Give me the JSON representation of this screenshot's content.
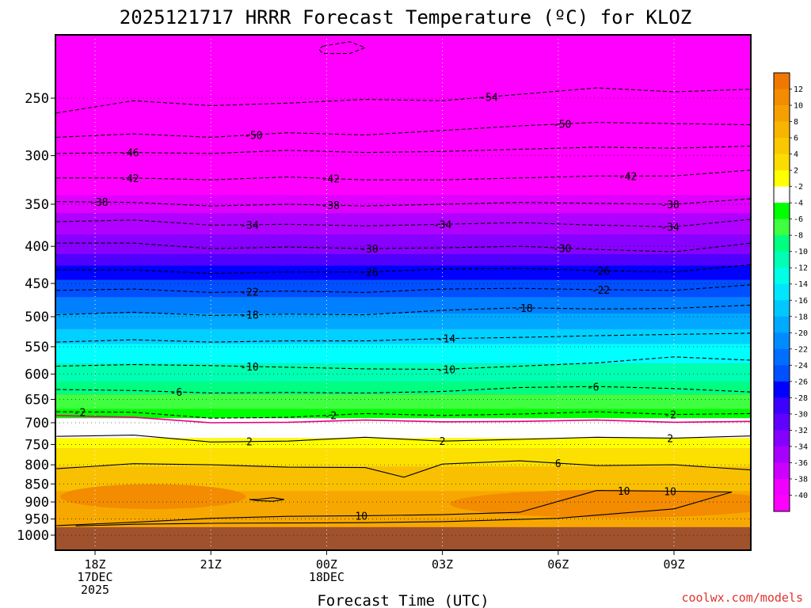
{
  "chart_data": {
    "type": "heatmap",
    "title": "2025121717 HRRR Forecast Temperature (ºC) for KLOZ",
    "xlabel": "Forecast Time (UTC)",
    "ylabel": "",
    "credit": "coolwx.com/models",
    "y_scale": "log-pressure (hPa), inverted",
    "ylim": [
      1050,
      200
    ],
    "y_ticks": [
      250,
      300,
      350,
      400,
      450,
      500,
      550,
      600,
      650,
      700,
      750,
      800,
      850,
      900,
      950,
      1000
    ],
    "x_ticks": [
      {
        "hour": 18,
        "lines": [
          "18Z",
          "17DEC",
          "2025"
        ]
      },
      {
        "hour": 21,
        "lines": [
          "21Z"
        ]
      },
      {
        "hour": 24,
        "lines": [
          "00Z",
          "18DEC"
        ]
      },
      {
        "hour": 27,
        "lines": [
          "03Z"
        ]
      },
      {
        "hour": 30,
        "lines": [
          "06Z"
        ]
      },
      {
        "hour": 33,
        "lines": [
          "09Z"
        ]
      }
    ],
    "xlim": [
      17,
      35
    ],
    "grid": true,
    "colorbar": {
      "placement": "right",
      "labels": [
        "12",
        "10",
        "8",
        "6",
        "4",
        "2",
        "-2",
        "-4",
        "-6",
        "-8",
        "-10",
        "-12",
        "-14",
        "-16",
        "-18",
        "-20",
        "-22",
        "-24",
        "-26",
        "-28",
        "-30",
        "-32",
        "-34",
        "-36",
        "-38",
        "-40"
      ],
      "colors": [
        "#f07800",
        "#f38c00",
        "#f6a000",
        "#f8b400",
        "#fac800",
        "#fcdc00",
        "#ffff00",
        "#ffffff",
        "#00ff00",
        "#40ff40",
        "#00ff80",
        "#00ffb4",
        "#00ffe6",
        "#00e6ff",
        "#00c8ff",
        "#00aaff",
        "#008cff",
        "#006eff",
        "#0050ff",
        "#0000ff",
        "#3c00ff",
        "#6000ff",
        "#8400ff",
        "#a800ff",
        "#cc00ff",
        "#f000ff",
        "#ff00ff"
      ]
    },
    "ground_color": "#a0522d",
    "freezing_line_color": "#e6007e",
    "bands": [
      {
        "top": 250,
        "bottom": 340,
        "color": "#ff00ff"
      },
      {
        "top": 340,
        "bottom": 360,
        "color": "#e000ff"
      },
      {
        "top": 360,
        "bottom": 385,
        "color": "#b000ff"
      },
      {
        "top": 385,
        "bottom": 410,
        "color": "#8800ff"
      },
      {
        "top": 410,
        "bottom": 425,
        "color": "#5000ff"
      },
      {
        "top": 425,
        "bottom": 445,
        "color": "#0000ff"
      },
      {
        "top": 445,
        "bottom": 470,
        "color": "#0050ff"
      },
      {
        "top": 470,
        "bottom": 495,
        "color": "#0080ff"
      },
      {
        "top": 495,
        "bottom": 520,
        "color": "#00a8ff"
      },
      {
        "top": 520,
        "bottom": 545,
        "color": "#00d0ff"
      },
      {
        "top": 545,
        "bottom": 580,
        "color": "#00ffff"
      },
      {
        "top": 580,
        "bottom": 615,
        "color": "#00ffb0"
      },
      {
        "top": 615,
        "bottom": 640,
        "color": "#00ff80"
      },
      {
        "top": 640,
        "bottom": 670,
        "color": "#40ff40"
      },
      {
        "top": 670,
        "bottom": 690,
        "color": "#00ff00"
      },
      {
        "top": 690,
        "bottom": 735,
        "color": "#ffffff"
      },
      {
        "top": 735,
        "bottom": 760,
        "color": "#ffff00"
      },
      {
        "top": 760,
        "bottom": 805,
        "color": "#fce000"
      },
      {
        "top": 805,
        "bottom": 870,
        "color": "#f8c000"
      },
      {
        "top": 870,
        "bottom": 975,
        "color": "#f7a800"
      }
    ],
    "warm_blobs": [
      {
        "x": 19.5,
        "p": 885,
        "rx": 2.4,
        "rp": 35
      },
      {
        "x": 31.5,
        "p": 905,
        "rx": 4.3,
        "rp": 40
      }
    ],
    "ground_top": 975,
    "contours": [
      {
        "label": "-54",
        "style": "dashed",
        "x": [
          17,
          19,
          21,
          23,
          25,
          27,
          29,
          31,
          33,
          35
        ],
        "p": [
          262,
          252,
          256,
          254,
          251,
          252,
          247,
          242,
          245,
          243
        ],
        "labels_at": [
          28.2
        ]
      },
      {
        "label": "-50",
        "style": "dashed",
        "x": [
          17,
          19,
          21,
          23,
          25,
          27,
          29,
          31,
          33,
          35
        ],
        "p": [
          283,
          280,
          283,
          279,
          281,
          277,
          273,
          270,
          271,
          272
        ],
        "labels_at": [
          22.1,
          30.1
        ]
      },
      {
        "label": "-46",
        "style": "dashed",
        "x": [
          17,
          19,
          21,
          23,
          25,
          27,
          29,
          31,
          33,
          35
        ],
        "p": [
          298,
          297,
          298,
          295,
          297,
          296,
          294,
          292,
          293,
          291
        ],
        "labels_at": [
          18.9
        ]
      },
      {
        "label": "-42",
        "style": "dashed",
        "x": [
          17,
          19,
          21,
          23,
          25,
          27,
          29,
          31,
          33,
          35
        ],
        "p": [
          322,
          322,
          324,
          321,
          324,
          324,
          322,
          320,
          320,
          314
        ],
        "labels_at": [
          18.9,
          24.1,
          31.8
        ]
      },
      {
        "label": "-38",
        "style": "dashed",
        "x": [
          17,
          19,
          21,
          23,
          25,
          27,
          29,
          31,
          33,
          35
        ],
        "p": [
          347,
          348,
          352,
          350,
          352,
          350,
          348,
          349,
          350,
          344
        ],
        "labels_at": [
          18.1,
          24.1,
          32.9
        ]
      },
      {
        "label": "-34",
        "style": "dashed",
        "x": [
          17,
          19,
          21,
          23,
          25,
          27,
          29,
          31,
          33,
          35
        ],
        "p": [
          370,
          368,
          374,
          373,
          375,
          373,
          371,
          374,
          376,
          367
        ],
        "labels_at": [
          22.0,
          27.0,
          32.9
        ]
      },
      {
        "label": "-30",
        "style": "dashed",
        "x": [
          17,
          19,
          21,
          23,
          25,
          27,
          29,
          31,
          33,
          35
        ],
        "p": [
          396,
          396,
          403,
          401,
          403,
          402,
          400,
          404,
          407,
          396
        ],
        "labels_at": [
          25.1,
          30.1
        ]
      },
      {
        "label": "-26",
        "style": "dashed",
        "x": [
          17,
          19,
          21,
          23,
          25,
          27,
          29,
          31,
          33,
          35
        ],
        "p": [
          431,
          431,
          436,
          434,
          434,
          430,
          429,
          432,
          434,
          424
        ],
        "labels_at": [
          25.1,
          31.1
        ]
      },
      {
        "label": "-22",
        "style": "dashed",
        "x": [
          17,
          19,
          21,
          23,
          25,
          27,
          29,
          31,
          33,
          35
        ],
        "p": [
          460,
          458,
          463,
          461,
          463,
          458,
          457,
          459,
          460,
          452
        ],
        "labels_at": [
          22.0,
          31.1
        ]
      },
      {
        "label": "-18",
        "style": "dashed",
        "x": [
          17,
          19,
          21,
          23,
          25,
          27,
          29,
          31,
          33,
          35
        ],
        "p": [
          497,
          493,
          498,
          496,
          497,
          490,
          486,
          488,
          487,
          482
        ],
        "labels_at": [
          22.0,
          29.1
        ]
      },
      {
        "label": "-14",
        "style": "dashed",
        "x": [
          17,
          19,
          21,
          23,
          25,
          27,
          29,
          31,
          33,
          35
        ],
        "p": [
          542,
          538,
          542,
          540,
          540,
          536,
          534,
          531,
          529,
          527
        ],
        "labels_at": [
          27.1
        ]
      },
      {
        "label": "-10",
        "style": "dashed",
        "x": [
          17,
          19,
          21,
          23,
          25,
          27,
          29,
          31,
          33,
          35
        ],
        "p": [
          585,
          582,
          584,
          587,
          590,
          591,
          585,
          579,
          568,
          574
        ],
        "labels_at": [
          22.0,
          27.1
        ]
      },
      {
        "label": "-6",
        "style": "dashed",
        "x": [
          17,
          19,
          21,
          23,
          25,
          27,
          29,
          31,
          33,
          35
        ],
        "p": [
          630,
          632,
          637,
          636,
          637,
          634,
          626,
          624,
          628,
          635
        ],
        "labels_at": [
          20.1,
          30.9
        ]
      },
      {
        "label": "-2",
        "style": "dashed",
        "x": [
          17,
          19,
          21,
          23,
          25,
          27,
          29,
          31,
          33,
          35
        ],
        "p": [
          676,
          677,
          690,
          688,
          680,
          684,
          681,
          676,
          682,
          680
        ],
        "labels_at": [
          17.6,
          24.1,
          32.9
        ]
      },
      {
        "label": "2",
        "style": "solid",
        "x": [
          17,
          19,
          21,
          23,
          25,
          27,
          29,
          31,
          33,
          35
        ],
        "p": [
          731,
          728,
          744,
          742,
          733,
          742,
          738,
          733,
          735,
          730
        ],
        "labels_at": [
          22.0,
          27.0,
          32.9
        ]
      },
      {
        "label": "6",
        "style": "solid",
        "x": [
          17,
          19,
          21,
          23,
          25,
          26,
          27,
          29,
          31,
          33,
          35
        ],
        "p": [
          810,
          797,
          800,
          806,
          807,
          832,
          798,
          790,
          802,
          800,
          813
        ],
        "labels_at": [
          30.0
        ]
      },
      {
        "label": "10",
        "style": "solid",
        "x": [
          17,
          19,
          21,
          23,
          25,
          27,
          29,
          31,
          33,
          34.5,
          33,
          30,
          27,
          25,
          23,
          21,
          19,
          17.5
        ],
        "p": [
          970,
          960,
          948,
          942,
          940,
          937,
          930,
          868,
          870,
          872,
          920,
          948,
          958,
          961,
          962,
          963,
          966,
          971
        ],
        "labels_at": [
          24.9,
          31.7,
          32.9
        ]
      },
      {
        "label": "",
        "style": "solid",
        "x": [
          22.2,
          22.6,
          22.9,
          22.6,
          22.2,
          22.0,
          22.2
        ],
        "p": [
          893,
          888,
          893,
          898,
          896,
          893,
          893
        ],
        "labels_at": []
      },
      {
        "label": "",
        "style": "dashed",
        "x": [
          23.9,
          24.6,
          25.0,
          24.6,
          23.9,
          23.8,
          23.9
        ],
        "p": [
          212,
          209,
          213,
          217,
          217,
          214,
          212
        ],
        "labels_at": []
      }
    ]
  }
}
